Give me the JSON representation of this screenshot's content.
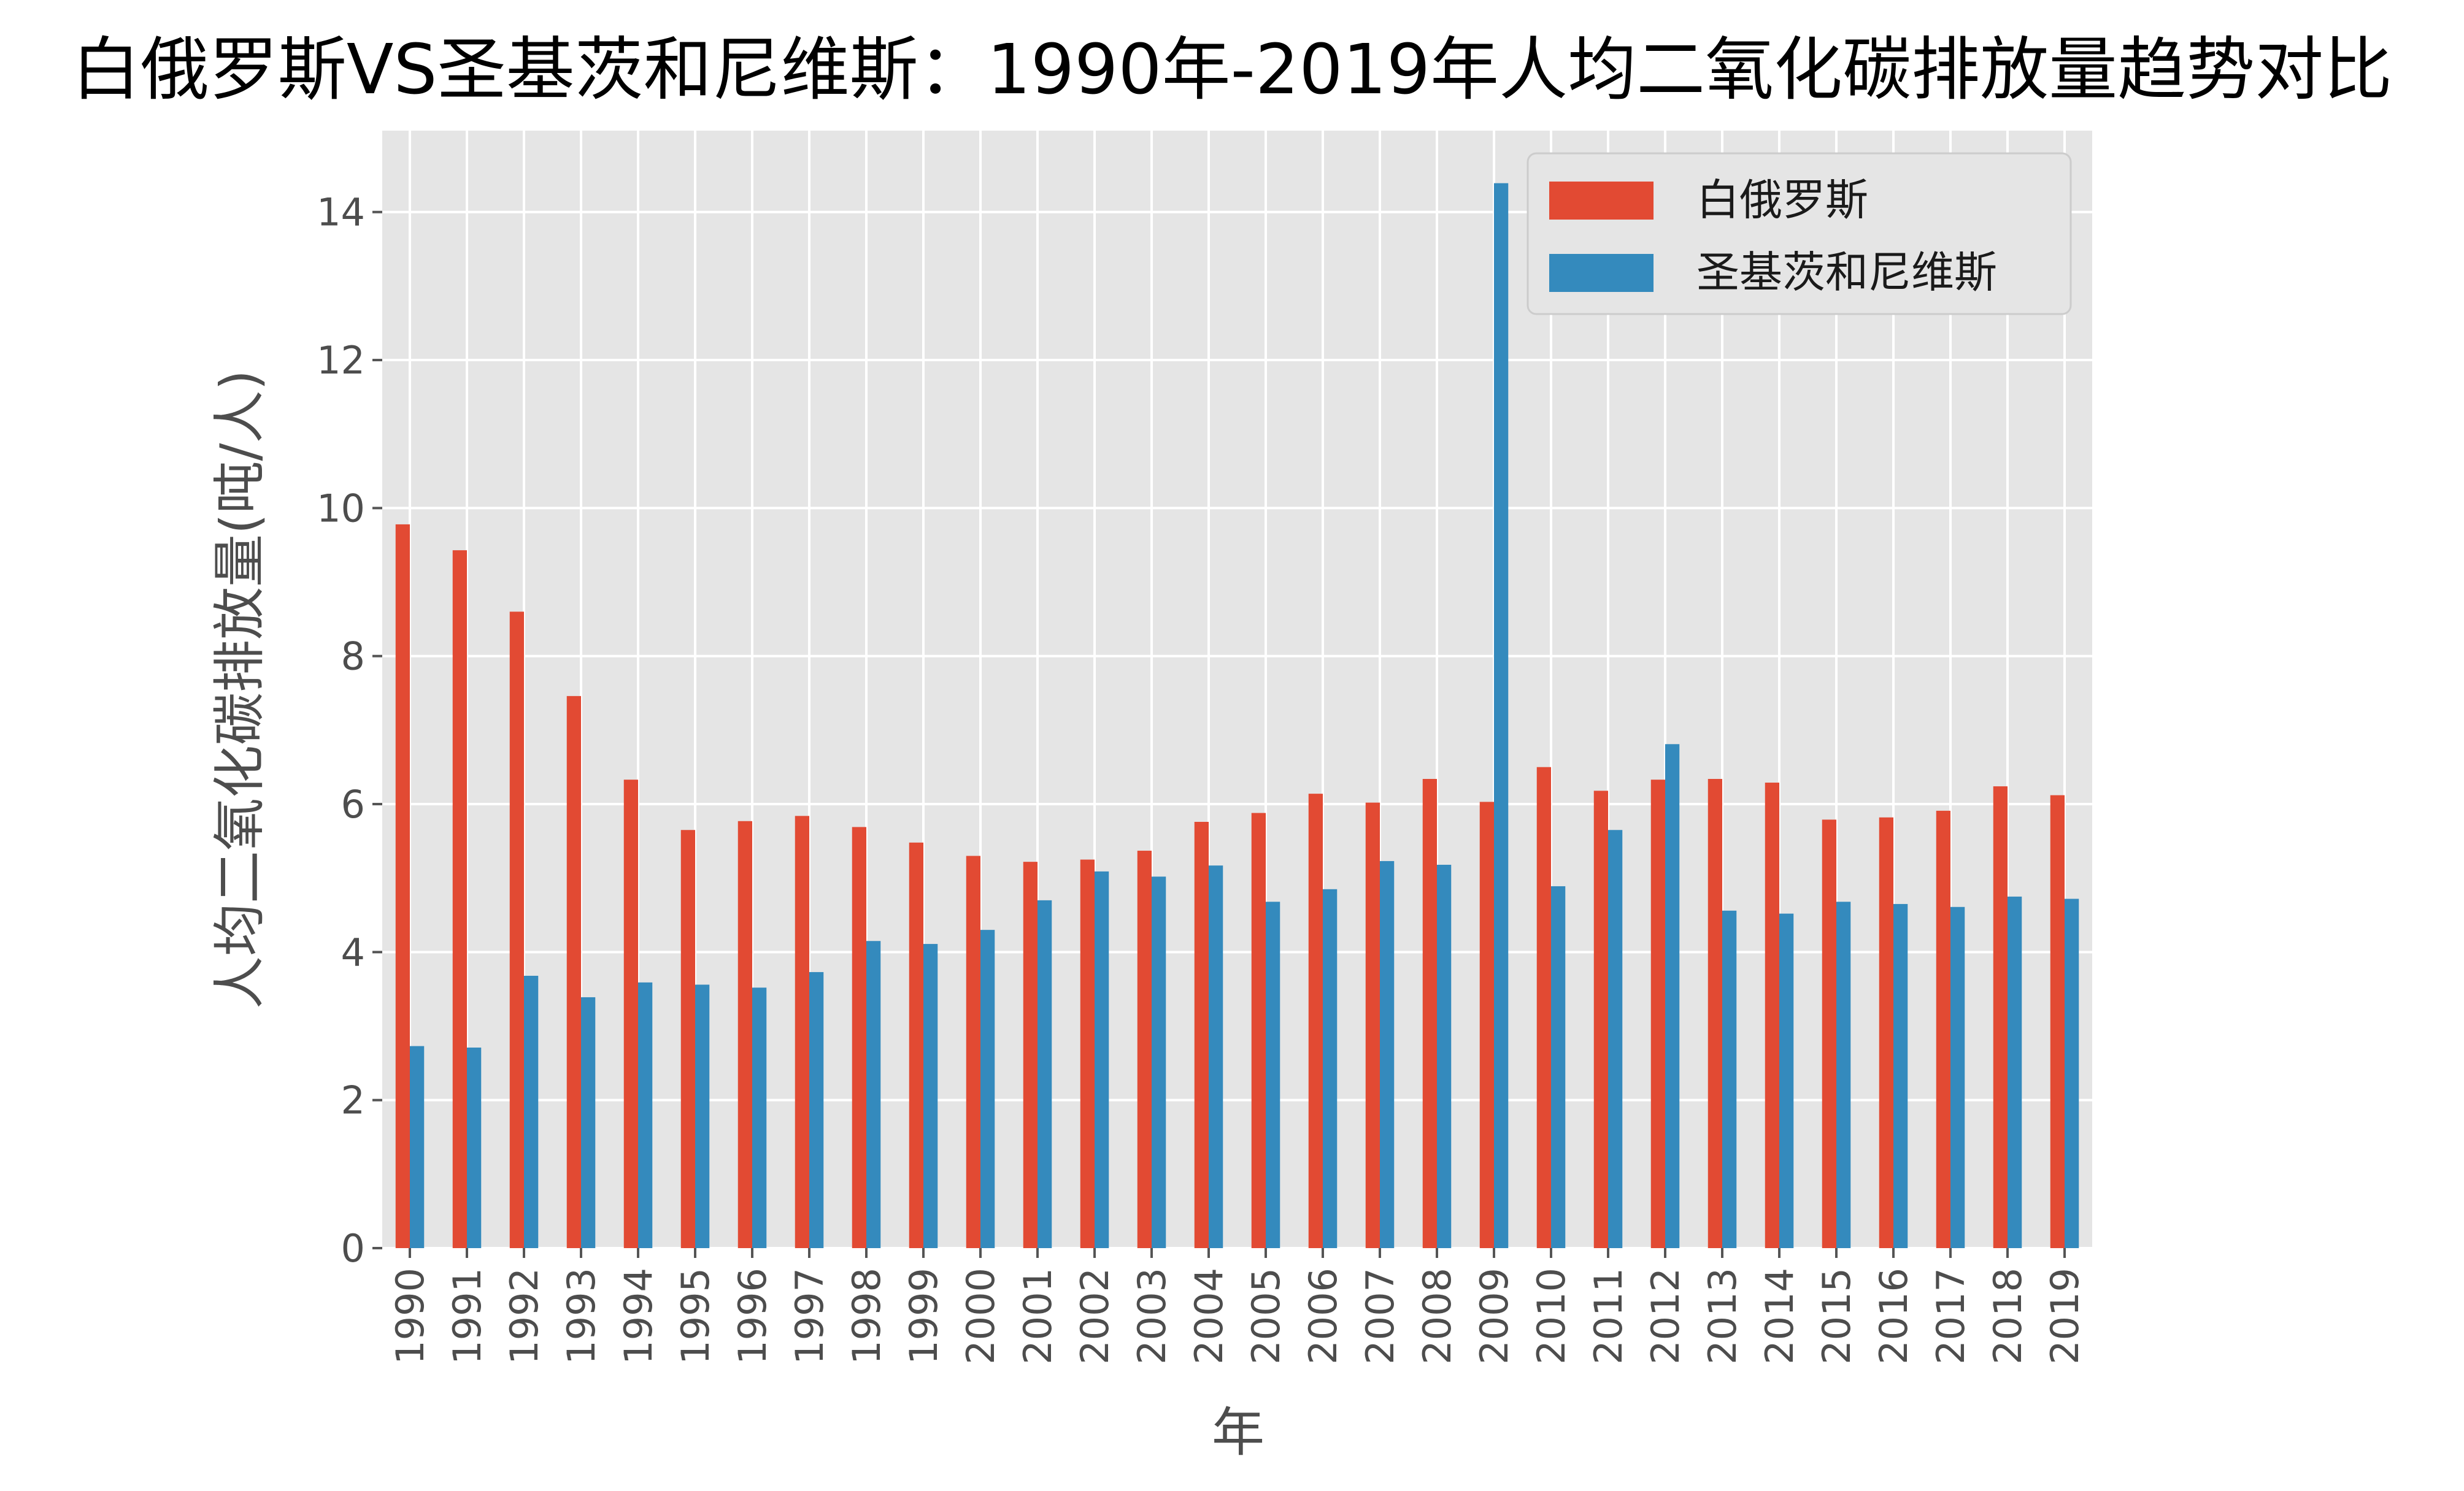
{
  "chart_data": {
    "type": "bar",
    "title": "白俄罗斯VS圣基茨和尼维斯：1990年-2019年人均二氧化碳排放量趋势对比",
    "xlabel": "年",
    "ylabel": "人均二氧化碳排放量(吨/人)",
    "ylim": [
      0,
      15.1
    ],
    "yticks": [
      0,
      2,
      4,
      6,
      8,
      10,
      12,
      14
    ],
    "grid": true,
    "legend_position": "top-right",
    "categories": [
      "1990",
      "1991",
      "1992",
      "1993",
      "1994",
      "1995",
      "1996",
      "1997",
      "1998",
      "1999",
      "2000",
      "2001",
      "2002",
      "2003",
      "2004",
      "2005",
      "2006",
      "2007",
      "2008",
      "2009",
      "2010",
      "2011",
      "2012",
      "2013",
      "2014",
      "2015",
      "2016",
      "2017",
      "2018",
      "2019"
    ],
    "series": [
      {
        "name": "白俄罗斯",
        "color": "#e24a33",
        "values": [
          9.78,
          9.43,
          8.6,
          7.46,
          6.33,
          5.65,
          5.77,
          5.84,
          5.69,
          5.48,
          5.3,
          5.22,
          5.25,
          5.37,
          5.76,
          5.88,
          6.14,
          6.02,
          6.34,
          6.03,
          6.5,
          6.18,
          6.33,
          6.34,
          6.29,
          5.79,
          5.82,
          5.91,
          6.24,
          6.12
        ]
      },
      {
        "name": "圣基茨和尼维斯",
        "color": "#348abd",
        "values": [
          2.73,
          2.71,
          3.68,
          3.39,
          3.59,
          3.56,
          3.52,
          3.73,
          4.15,
          4.11,
          4.3,
          4.7,
          5.09,
          5.02,
          5.17,
          4.68,
          4.85,
          5.23,
          5.18,
          14.39,
          4.89,
          5.65,
          6.81,
          4.56,
          4.52,
          4.68,
          4.65,
          4.61,
          4.75,
          4.72
        ]
      }
    ]
  }
}
